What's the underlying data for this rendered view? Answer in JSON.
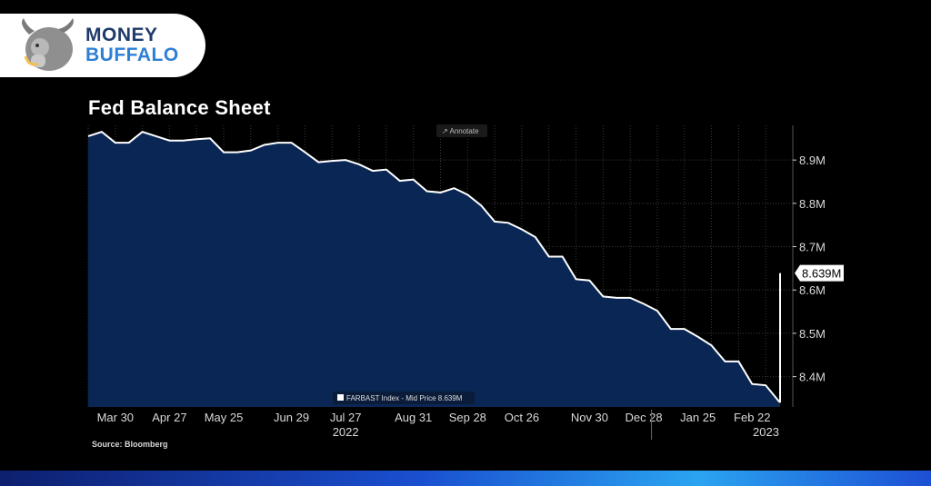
{
  "logo": {
    "line1": "MONEY",
    "line2": "BUFFALO"
  },
  "chart_data": {
    "type": "area",
    "title": "Fed Balance Sheet",
    "source": "Source: Bloomberg",
    "annotate_label": "Annotate",
    "legend": "FARBAST Index - Mid Price 8.639M",
    "last_value_label": "8.639M",
    "ylim": [
      8.33,
      8.98
    ],
    "yticks": [
      {
        "value": 8.4,
        "label": "8.4M"
      },
      {
        "value": 8.5,
        "label": "8.5M"
      },
      {
        "value": 8.6,
        "label": "8.6M"
      },
      {
        "value": 8.7,
        "label": "8.7M"
      },
      {
        "value": 8.8,
        "label": "8.8M"
      },
      {
        "value": 8.9,
        "label": "8.9M"
      }
    ],
    "xlim": [
      "2022-03-16",
      "2023-03-15"
    ],
    "xticks": [
      {
        "date": "2022-03-30",
        "label": "Mar 30"
      },
      {
        "date": "2022-04-27",
        "label": "Apr 27"
      },
      {
        "date": "2022-05-25",
        "label": "May 25"
      },
      {
        "date": "2022-06-29",
        "label": "Jun 29"
      },
      {
        "date": "2022-07-27",
        "label": "Jul 27"
      },
      {
        "date": "2022-08-31",
        "label": "Aug 31"
      },
      {
        "date": "2022-09-28",
        "label": "Sep 28"
      },
      {
        "date": "2022-10-26",
        "label": "Oct 26"
      },
      {
        "date": "2022-11-30",
        "label": "Nov 30"
      },
      {
        "date": "2022-12-28",
        "label": "Dec 28"
      },
      {
        "date": "2023-01-25",
        "label": "Jan 25"
      },
      {
        "date": "2023-02-22",
        "label": "Feb 22"
      }
    ],
    "years": [
      {
        "date": "2022-07-27",
        "label": "2022"
      },
      {
        "date": "2023-02-08",
        "label": "2023"
      }
    ],
    "grid": true,
    "series": [
      {
        "points": [
          [
            "2022-03-16",
            8.955
          ],
          [
            "2022-03-23",
            8.965
          ],
          [
            "2022-03-30",
            8.94
          ],
          [
            "2022-04-06",
            8.94
          ],
          [
            "2022-04-13",
            8.965
          ],
          [
            "2022-04-20",
            8.955
          ],
          [
            "2022-04-27",
            8.945
          ],
          [
            "2022-05-04",
            8.945
          ],
          [
            "2022-05-11",
            8.948
          ],
          [
            "2022-05-18",
            8.95
          ],
          [
            "2022-05-25",
            8.918
          ],
          [
            "2022-06-01",
            8.918
          ],
          [
            "2022-06-08",
            8.922
          ],
          [
            "2022-06-15",
            8.935
          ],
          [
            "2022-06-22",
            8.94
          ],
          [
            "2022-06-29",
            8.94
          ],
          [
            "2022-07-06",
            8.918
          ],
          [
            "2022-07-13",
            8.895
          ],
          [
            "2022-07-20",
            8.898
          ],
          [
            "2022-07-27",
            8.9
          ],
          [
            "2022-08-03",
            8.89
          ],
          [
            "2022-08-10",
            8.875
          ],
          [
            "2022-08-17",
            8.878
          ],
          [
            "2022-08-24",
            8.852
          ],
          [
            "2022-08-31",
            8.855
          ],
          [
            "2022-09-07",
            8.828
          ],
          [
            "2022-09-14",
            8.825
          ],
          [
            "2022-09-21",
            8.835
          ],
          [
            "2022-09-28",
            8.82
          ],
          [
            "2022-10-05",
            8.795
          ],
          [
            "2022-10-12",
            8.758
          ],
          [
            "2022-10-19",
            8.755
          ],
          [
            "2022-10-26",
            8.74
          ],
          [
            "2022-11-02",
            8.722
          ],
          [
            "2022-11-09",
            8.677
          ],
          [
            "2022-11-16",
            8.677
          ],
          [
            "2022-11-23",
            8.625
          ],
          [
            "2022-11-30",
            8.622
          ],
          [
            "2022-12-07",
            8.585
          ],
          [
            "2022-12-14",
            8.582
          ],
          [
            "2022-12-21",
            8.582
          ],
          [
            "2022-12-28",
            8.568
          ],
          [
            "2023-01-04",
            8.552
          ],
          [
            "2023-01-11",
            8.51
          ],
          [
            "2023-01-18",
            8.51
          ],
          [
            "2023-01-25",
            8.492
          ],
          [
            "2023-02-01",
            8.472
          ],
          [
            "2023-02-08",
            8.435
          ],
          [
            "2023-02-15",
            8.435
          ],
          [
            "2023-02-22",
            8.383
          ],
          [
            "2023-03-01",
            8.38
          ],
          [
            "2023-03-08",
            8.342
          ],
          [
            "2023-03-15",
            8.342
          ],
          [
            "2023-03-22",
            8.639
          ]
        ]
      }
    ],
    "colors": {
      "fill": "#0a2654",
      "line": "#ffffff",
      "grid": "#3a3a3a",
      "axis_text": "#d9d9d9",
      "label_bg": "#ffffff",
      "label_text": "#000000"
    }
  }
}
